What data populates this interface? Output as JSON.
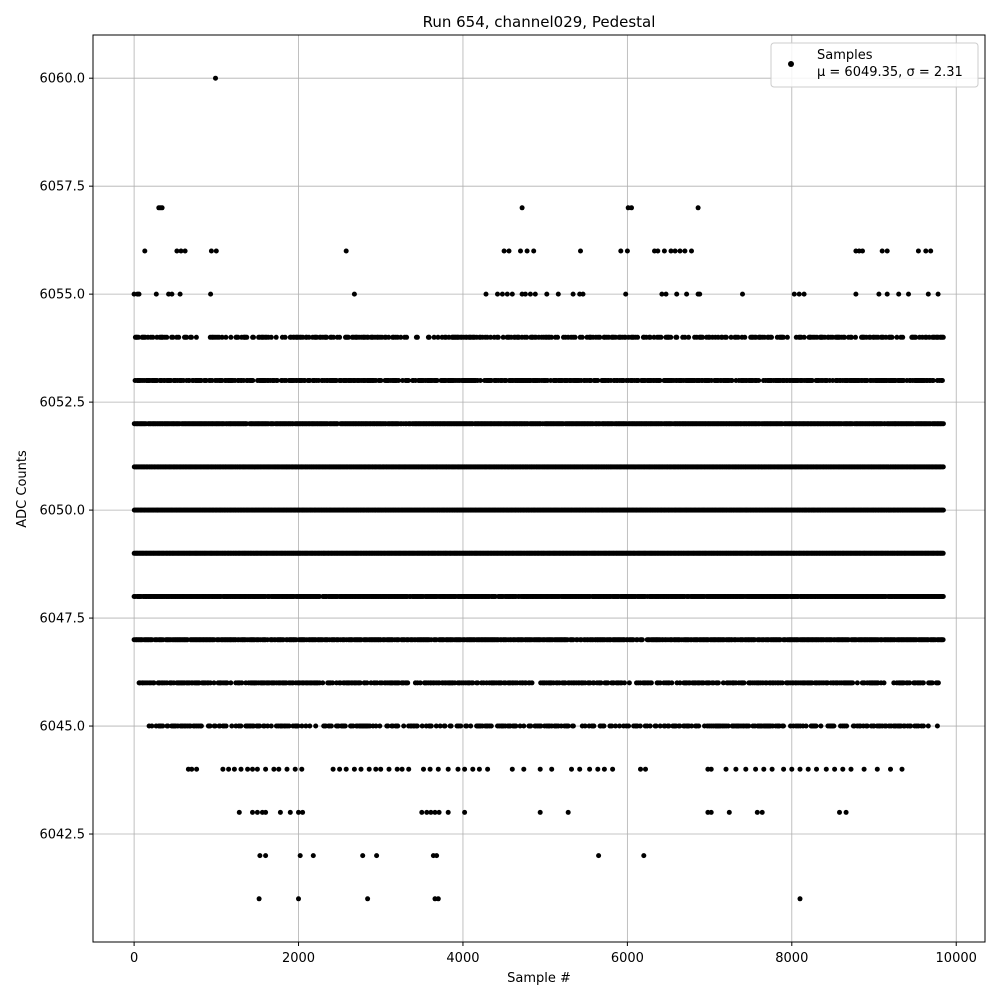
{
  "chart_data": {
    "type": "scatter",
    "title": "Run 654, channel029, Pedestal",
    "xlabel": "Sample #",
    "ylabel": "ADC Counts",
    "xlim": [
      -500,
      10350
    ],
    "ylim": [
      6040.0,
      6061.0
    ],
    "x_ticks": [
      0,
      2000,
      4000,
      6000,
      8000,
      10000
    ],
    "y_ticks": [
      6042.5,
      6045.0,
      6047.5,
      6050.0,
      6052.5,
      6055.0,
      6057.5,
      6060.0
    ],
    "x_tick_labels": [
      "0",
      "2000",
      "4000",
      "6000",
      "8000",
      "10000"
    ],
    "y_tick_labels": [
      "6042.5",
      "6045.0",
      "6047.5",
      "6050.0",
      "6052.5",
      "6055.0",
      "6057.5",
      "6060.0"
    ],
    "grid": true,
    "legend_position": "top-right",
    "marker_color": "#000000",
    "series": [
      {
        "name": "Samples",
        "stats_label": "μ = 6049.35, σ = 2.31",
        "levels": [
          {
            "y": 6060,
            "x": [
              990
            ]
          },
          {
            "y": 6057,
            "x": [
              300,
              320,
              340,
              4720,
              6010,
              6050,
              6860
            ]
          },
          {
            "y": 6056,
            "x": [
              130,
              520,
              570,
              620,
              940,
              1000,
              2580,
              4500,
              4560,
              4700,
              4780,
              4860,
              5430,
              5920,
              6000,
              6330,
              6370,
              6450,
              6530,
              6580,
              6640,
              6700,
              6780,
              8780,
              8820,
              8860,
              9100,
              9160,
              9540,
              9630,
              9690
            ]
          },
          {
            "y": 6055,
            "x": [
              0,
              40,
              60,
              270,
              420,
              460,
              560,
              930,
              2680,
              4280,
              4420,
              4480,
              4540,
              4600,
              4720,
              4760,
              4820,
              4880,
              5020,
              5160,
              5340,
              5420,
              5460,
              5980,
              6420,
              6470,
              6600,
              6720,
              6860,
              6880,
              7400,
              8030,
              8090,
              8150,
              8780,
              9060,
              9160,
              9300,
              9420,
              9660,
              9780
            ]
          },
          {
            "y": 6041,
            "x": [
              1520,
              2000,
              2840,
              3660,
              3700,
              8100
            ]
          },
          {
            "y": 6042,
            "x": [
              1530,
              1600,
              2020,
              2180,
              2780,
              2950,
              3640,
              3680,
              5650,
              6200
            ]
          },
          {
            "y": 6043,
            "x": [
              1280,
              1440,
              1500,
              1560,
              1600,
              1780,
              1900,
              2000,
              2050,
              3500,
              3560,
              3610,
              3660,
              3710,
              3820,
              4020,
              4940,
              5280,
              6980,
              7020,
              7240,
              7580,
              7640,
              8580,
              8660
            ]
          },
          {
            "y": 6044,
            "x": [
              660,
              700,
              760,
              1080,
              1150,
              1220,
              1300,
              1380,
              1440,
              1500,
              1600,
              1700,
              1760,
              1860,
              1960,
              2040,
              2420,
              2500,
              2580,
              2680,
              2760,
              2860,
              2940,
              3000,
              3100,
              3200,
              3260,
              3340,
              3520,
              3600,
              3700,
              3820,
              3940,
              4020,
              4120,
              4200,
              4300,
              4600,
              4740,
              4940,
              5080,
              5320,
              5420,
              5540,
              5640,
              5720,
              5820,
              6160,
              6220,
              6980,
              7020,
              7200,
              7320,
              7440,
              7560,
              7660,
              7760,
              7900,
              8000,
              8100,
              8200,
              8300,
              8420,
              8520,
              8620,
              8720,
              8880,
              9040,
              9200,
              9340
            ]
          }
        ],
        "bands": [
          {
            "y": 6054,
            "x_min": 0,
            "x_max": 9840,
            "density": 0.45
          },
          {
            "y": 6053,
            "x_min": 0,
            "x_max": 9840,
            "density": 0.7
          },
          {
            "y": 6052,
            "x_min": 0,
            "x_max": 9840,
            "density": 0.95
          },
          {
            "y": 6051,
            "x_min": 0,
            "x_max": 9840,
            "density": 1.0
          },
          {
            "y": 6050,
            "x_min": 0,
            "x_max": 9840,
            "density": 1.0
          },
          {
            "y": 6049,
            "x_min": 0,
            "x_max": 9840,
            "density": 1.0
          },
          {
            "y": 6048,
            "x_min": 0,
            "x_max": 9840,
            "density": 0.95
          },
          {
            "y": 6047,
            "x_min": 0,
            "x_max": 9840,
            "density": 0.85
          },
          {
            "y": 6046,
            "x_min": 60,
            "x_max": 9780,
            "density": 0.6
          },
          {
            "y": 6045,
            "x_min": 120,
            "x_max": 9780,
            "density": 0.45
          }
        ]
      }
    ]
  }
}
